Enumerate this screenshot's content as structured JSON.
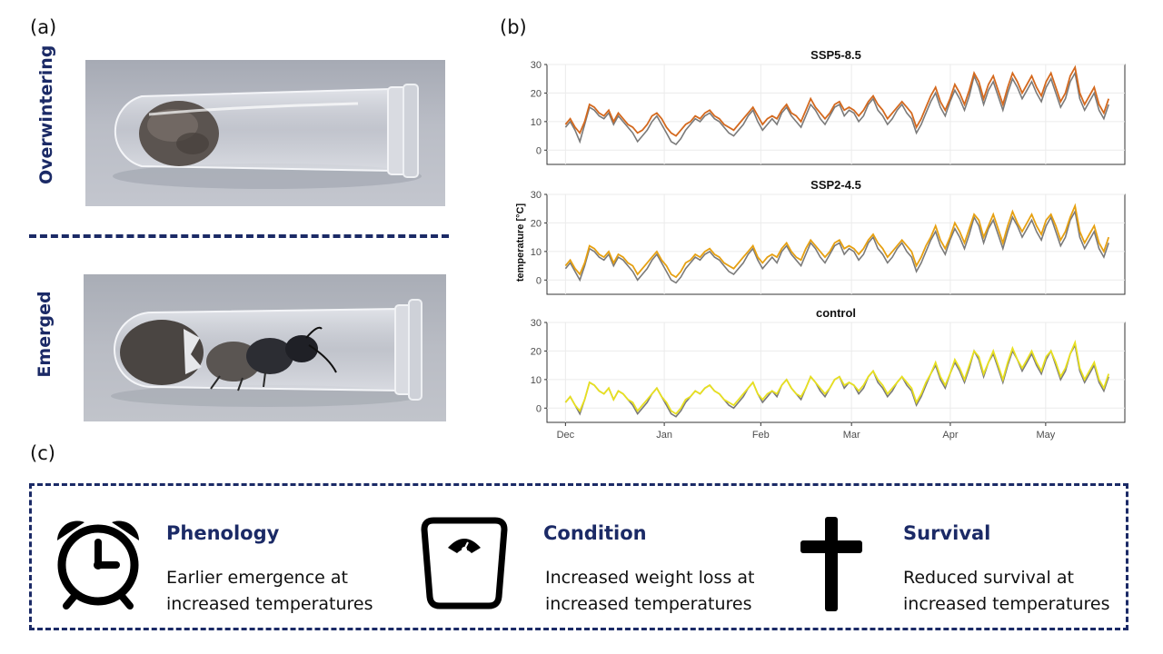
{
  "panels": {
    "a": "(a)",
    "b": "(b)",
    "c": "(c)"
  },
  "photos": {
    "top_label": "Overwintering",
    "bottom_label": "Emerged"
  },
  "chart_data": {
    "type": "line",
    "ylabel": "temperature [°C]",
    "x_ticks": [
      "Dec",
      "Jan",
      "Feb",
      "Mar",
      "Apr",
      "May"
    ],
    "y_ticks": [
      0,
      10,
      20,
      30
    ],
    "ylim": [
      -5,
      30
    ],
    "grid": true,
    "facets": [
      {
        "title": "SSP5-8.5",
        "color": "#d4691e",
        "baseline": [
          8,
          10,
          7,
          3,
          9,
          15,
          14,
          12,
          11,
          13,
          9,
          12,
          10,
          8,
          6,
          3,
          5,
          7,
          10,
          12,
          9,
          6,
          3,
          2,
          4,
          7,
          9,
          11,
          10,
          12,
          13,
          11,
          10,
          8,
          6,
          5,
          7,
          9,
          12,
          14,
          10,
          7,
          9,
          11,
          9,
          13,
          15,
          12,
          10,
          8,
          12,
          16,
          14,
          11,
          9,
          12,
          15,
          16,
          12,
          14,
          13,
          10,
          12,
          16,
          18,
          14,
          12,
          9,
          11,
          14,
          16,
          13,
          11,
          6,
          9,
          13,
          17,
          20,
          15,
          12,
          17,
          21,
          18,
          14,
          19,
          26,
          22,
          16,
          21,
          24,
          19,
          14,
          20,
          25,
          22,
          18,
          21,
          24,
          20,
          17,
          22,
          25,
          20,
          15,
          18,
          24,
          27,
          18,
          14,
          17,
          20,
          14,
          11,
          16
        ],
        "series": [
          9,
          11,
          8,
          6,
          10,
          16,
          15,
          13,
          12,
          14,
          10,
          13,
          11,
          9,
          8,
          6,
          7,
          9,
          12,
          13,
          11,
          8,
          6,
          5,
          7,
          9,
          10,
          12,
          11,
          13,
          14,
          12,
          11,
          9,
          8,
          7,
          9,
          11,
          13,
          15,
          12,
          9,
          11,
          12,
          11,
          14,
          16,
          13,
          12,
          10,
          14,
          18,
          15,
          13,
          11,
          13,
          16,
          17,
          14,
          15,
          14,
          12,
          14,
          17,
          19,
          16,
          14,
          11,
          13,
          15,
          17,
          15,
          13,
          8,
          11,
          15,
          19,
          22,
          17,
          14,
          18,
          23,
          20,
          16,
          21,
          27,
          24,
          18,
          23,
          26,
          21,
          16,
          22,
          27,
          24,
          20,
          23,
          26,
          22,
          19,
          24,
          27,
          22,
          17,
          20,
          26,
          29,
          20,
          16,
          19,
          22,
          16,
          13,
          18
        ]
      },
      {
        "title": "SSP2-4.5",
        "color": "#e6a011",
        "baseline": [
          4,
          6,
          3,
          0,
          5,
          11,
          10,
          8,
          7,
          9,
          5,
          8,
          7,
          5,
          3,
          0,
          2,
          4,
          7,
          9,
          6,
          3,
          0,
          -1,
          1,
          4,
          6,
          8,
          7,
          9,
          10,
          8,
          7,
          5,
          3,
          2,
          4,
          6,
          9,
          11,
          7,
          4,
          6,
          8,
          6,
          10,
          12,
          9,
          7,
          5,
          9,
          13,
          11,
          8,
          6,
          9,
          12,
          13,
          9,
          11,
          10,
          7,
          9,
          13,
          15,
          11,
          9,
          6,
          8,
          11,
          13,
          10,
          8,
          3,
          6,
          10,
          14,
          17,
          12,
          9,
          14,
          18,
          15,
          11,
          16,
          22,
          19,
          13,
          18,
          21,
          16,
          11,
          17,
          22,
          19,
          15,
          18,
          21,
          17,
          14,
          19,
          22,
          17,
          12,
          15,
          21,
          24,
          15,
          11,
          14,
          17,
          11,
          8,
          13
        ],
        "series": [
          5,
          7,
          4,
          2,
          6,
          12,
          11,
          9,
          8,
          10,
          6,
          9,
          8,
          6,
          5,
          2,
          4,
          6,
          8,
          10,
          7,
          5,
          2,
          1,
          3,
          6,
          7,
          9,
          8,
          10,
          11,
          9,
          8,
          6,
          5,
          4,
          6,
          8,
          10,
          12,
          8,
          6,
          8,
          9,
          8,
          11,
          13,
          10,
          8,
          7,
          11,
          14,
          12,
          10,
          8,
          10,
          13,
          14,
          11,
          12,
          11,
          9,
          11,
          14,
          16,
          13,
          11,
          8,
          10,
          12,
          14,
          12,
          10,
          5,
          8,
          12,
          15,
          19,
          14,
          11,
          15,
          20,
          17,
          13,
          18,
          23,
          21,
          15,
          19,
          23,
          18,
          13,
          19,
          24,
          20,
          17,
          20,
          23,
          19,
          16,
          21,
          23,
          19,
          14,
          17,
          22,
          26,
          17,
          13,
          16,
          19,
          13,
          10,
          15
        ]
      },
      {
        "title": "control",
        "color": "#e8e020",
        "baseline": [
          2,
          4,
          1,
          -2,
          3,
          9,
          8,
          6,
          5,
          7,
          3,
          6,
          5,
          3,
          1,
          -2,
          0,
          2,
          5,
          7,
          4,
          1,
          -2,
          -3,
          -1,
          2,
          4,
          6,
          5,
          7,
          8,
          6,
          5,
          3,
          1,
          0,
          2,
          4,
          7,
          9,
          5,
          2,
          4,
          6,
          4,
          8,
          10,
          7,
          5,
          3,
          7,
          11,
          9,
          6,
          4,
          7,
          10,
          11,
          7,
          9,
          8,
          5,
          7,
          11,
          13,
          9,
          7,
          4,
          6,
          9,
          11,
          8,
          6,
          1,
          4,
          8,
          12,
          15,
          10,
          7,
          12,
          16,
          13,
          9,
          14,
          20,
          17,
          11,
          16,
          19,
          14,
          9,
          15,
          20,
          17,
          13,
          16,
          19,
          15,
          12,
          17,
          20,
          15,
          10,
          13,
          19,
          22,
          13,
          9,
          12,
          15,
          9,
          6,
          11
        ],
        "series": [
          2,
          4,
          1,
          -1,
          3,
          9,
          8,
          6,
          5,
          7,
          3,
          6,
          5,
          3,
          2,
          -1,
          1,
          3,
          5,
          7,
          4,
          2,
          -1,
          -2,
          0,
          3,
          4,
          6,
          5,
          7,
          8,
          6,
          5,
          3,
          2,
          1,
          3,
          5,
          7,
          9,
          5,
          3,
          5,
          6,
          5,
          8,
          10,
          7,
          5,
          4,
          7,
          11,
          9,
          7,
          5,
          7,
          10,
          11,
          8,
          9,
          8,
          6,
          8,
          11,
          13,
          10,
          8,
          5,
          7,
          9,
          11,
          9,
          7,
          2,
          5,
          9,
          12,
          16,
          11,
          8,
          12,
          17,
          14,
          10,
          15,
          20,
          18,
          12,
          16,
          20,
          15,
          10,
          16,
          21,
          17,
          14,
          17,
          20,
          16,
          13,
          18,
          20,
          16,
          11,
          14,
          19,
          23,
          14,
          10,
          13,
          16,
          10,
          7,
          12
        ]
      }
    ],
    "baseline_color": "#7a7a7a"
  },
  "summary": {
    "items": [
      {
        "title": "Phenology",
        "desc": "Earlier emergence at increased temperatures",
        "icon": "alarm-clock-icon"
      },
      {
        "title": "Condition",
        "desc": "Increased weight loss at increased temperatures",
        "icon": "scale-icon"
      },
      {
        "title": "Survival",
        "desc": "Reduced survival at increased temperatures",
        "icon": "cross-icon"
      }
    ],
    "accent": "#1b2a66"
  }
}
